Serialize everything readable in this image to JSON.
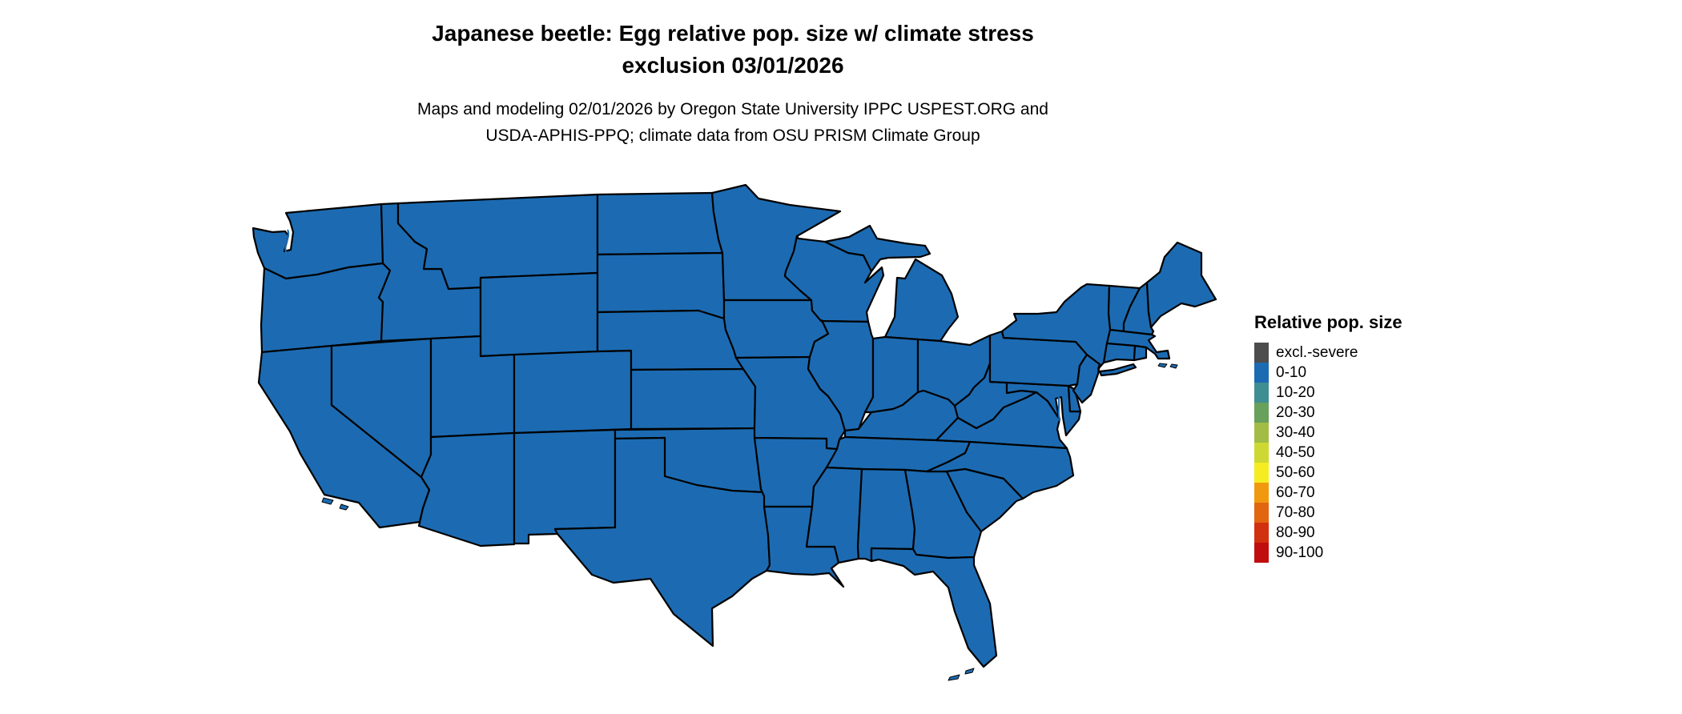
{
  "header": {
    "title_line1": "Japanese beetle: Egg relative pop. size w/ climate stress",
    "title_line2": "exclusion 03/01/2026",
    "subtitle_line1": "Maps and modeling 02/01/2026 by Oregon State University IPPC USPEST.ORG and",
    "subtitle_line2": "USDA-APHIS-PPQ; climate data from OSU PRISM Climate Group"
  },
  "legend": {
    "title": "Relative pop. size",
    "items": [
      {
        "label": "excl.-severe",
        "color": "#4D4D4D"
      },
      {
        "label": "0-10",
        "color": "#1C6BB2"
      },
      {
        "label": "10-20",
        "color": "#3F8E91"
      },
      {
        "label": "20-30",
        "color": "#68A05C"
      },
      {
        "label": "30-40",
        "color": "#A3BC46"
      },
      {
        "label": "40-50",
        "color": "#CDD932"
      },
      {
        "label": "50-60",
        "color": "#F5ED21"
      },
      {
        "label": "60-70",
        "color": "#F0990F"
      },
      {
        "label": "70-80",
        "color": "#E2650F"
      },
      {
        "label": "80-90",
        "color": "#D1310E"
      },
      {
        "label": "90-100",
        "color": "#C00D0D"
      }
    ]
  },
  "map": {
    "description": "Continental US choropleth; every state shown in the 0-10 class",
    "fill_category": "0-10",
    "fill_color": "#1C6BB2",
    "border_color": "#000000",
    "background_color": "#FFFFFF"
  }
}
